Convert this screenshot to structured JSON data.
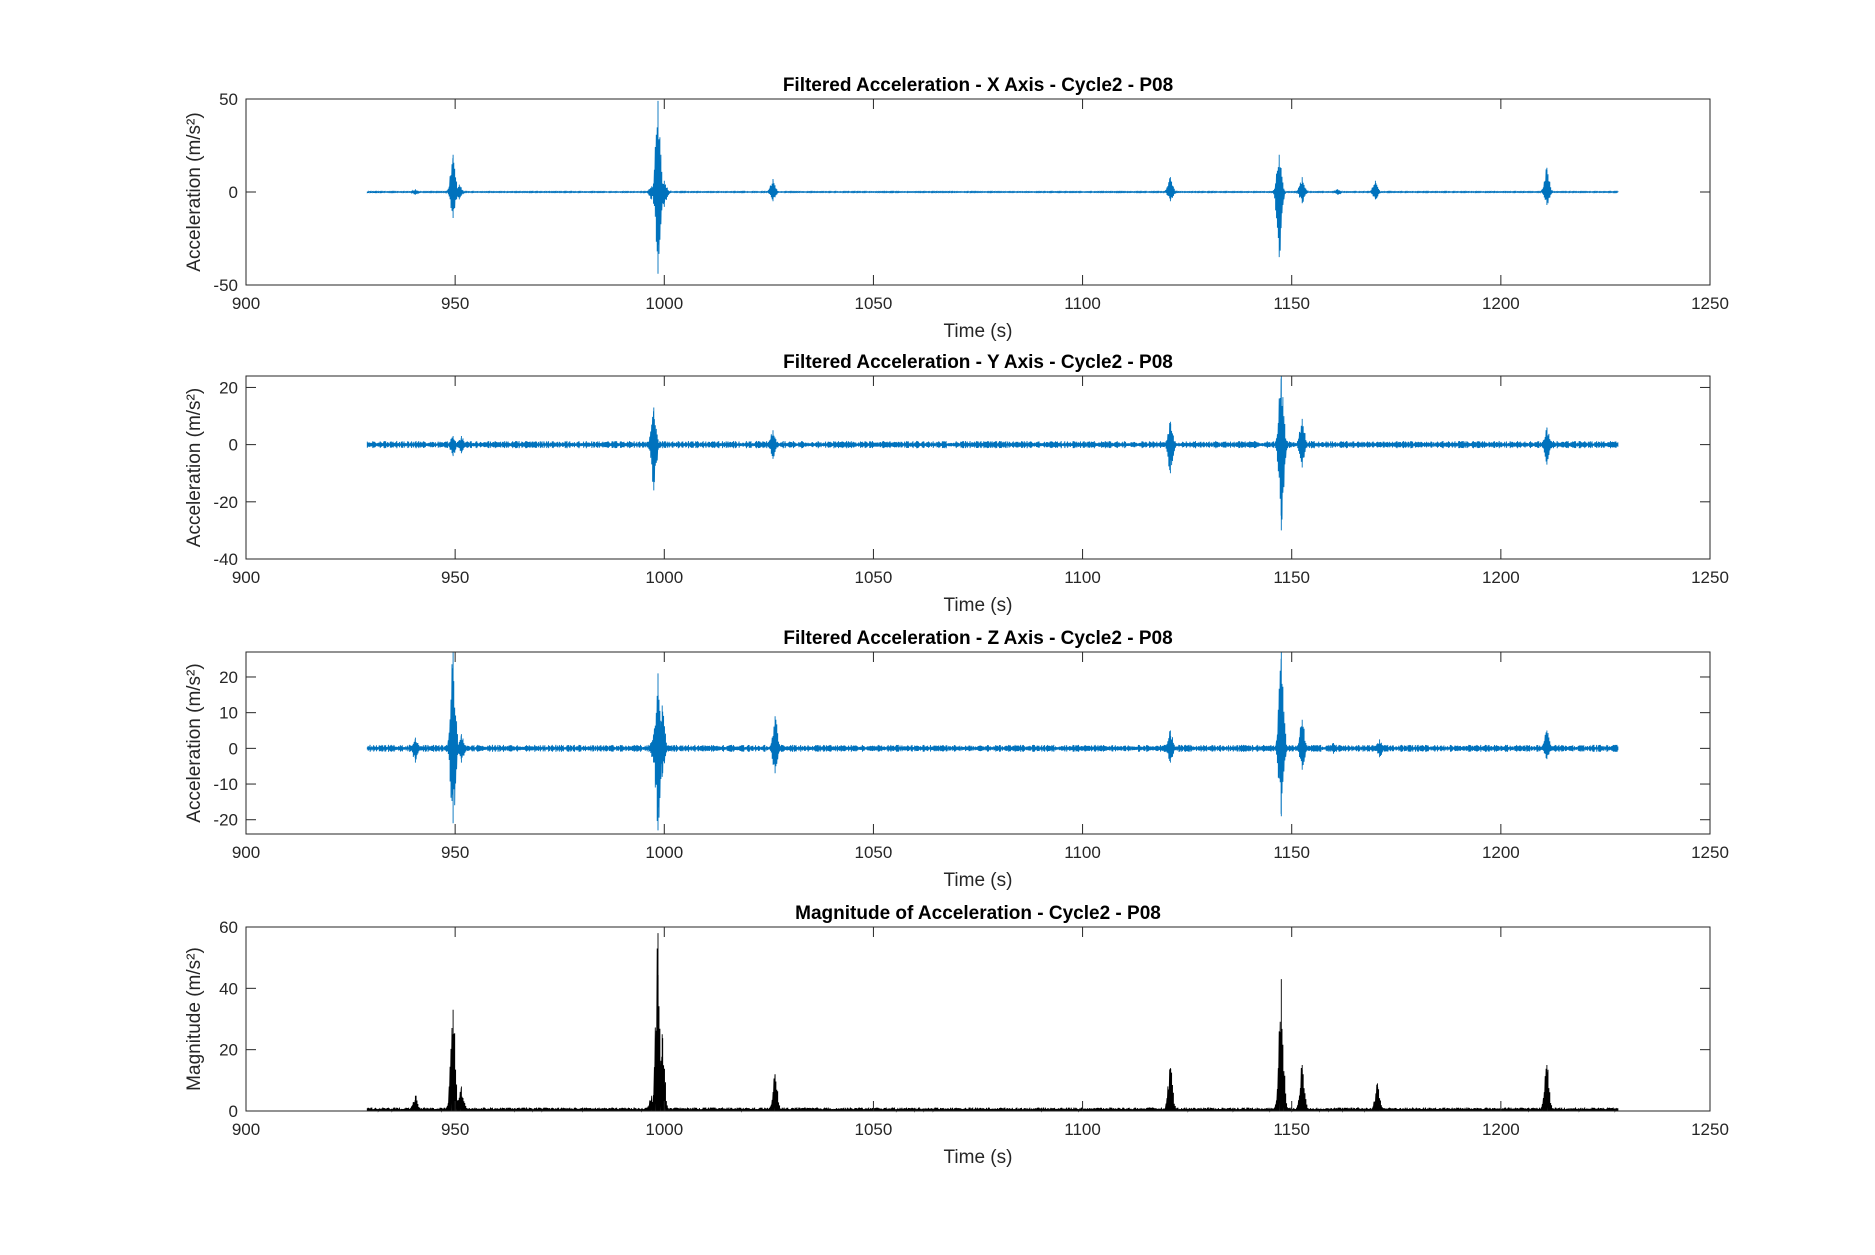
{
  "figure": {
    "colors": {
      "series": "#0072BD",
      "magnitude": "#000000",
      "axes": "#262626",
      "background": "#ffffff"
    }
  },
  "chart_data": [
    {
      "type": "line",
      "title": "Filtered Acceleration - X Axis - Cycle2 - P08",
      "xlabel": "Time (s)",
      "ylabel": "Acceleration (m/s²)",
      "xlim": [
        900,
        1250
      ],
      "ylim": [
        -50,
        50
      ],
      "xticks": [
        900,
        950,
        1000,
        1050,
        1100,
        1150,
        1200,
        1250
      ],
      "yticks": [
        -50,
        0,
        50
      ],
      "grid": false,
      "signal": {
        "x_start": 929,
        "x_end": 1228,
        "baseline": 0,
        "noise": 0.2,
        "bursts": [
          {
            "t": 940.5,
            "pos": 1.5,
            "neg": -1.5
          },
          {
            "t": 949.5,
            "pos": 20,
            "neg": -14
          },
          {
            "t": 951,
            "pos": 4,
            "neg": -4
          },
          {
            "t": 997,
            "pos": 3,
            "neg": -4
          },
          {
            "t": 998.5,
            "pos": 49,
            "neg": -44
          },
          {
            "t": 1000,
            "pos": 6,
            "neg": -8
          },
          {
            "t": 1026,
            "pos": 7,
            "neg": -5
          },
          {
            "t": 1121,
            "pos": 8,
            "neg": -5
          },
          {
            "t": 1147,
            "pos": 20,
            "neg": -35
          },
          {
            "t": 1152.5,
            "pos": 8,
            "neg": -6
          },
          {
            "t": 1161,
            "pos": 1.5,
            "neg": -1.5
          },
          {
            "t": 1170,
            "pos": 6,
            "neg": -4
          },
          {
            "t": 1211,
            "pos": 13,
            "neg": -7
          }
        ]
      }
    },
    {
      "type": "line",
      "title": "Filtered Acceleration - Y Axis - Cycle2 - P08",
      "xlabel": "Time (s)",
      "ylabel": "Acceleration (m/s²)",
      "xlim": [
        900,
        1250
      ],
      "ylim": [
        -40,
        24
      ],
      "xticks": [
        900,
        950,
        1000,
        1050,
        1100,
        1150,
        1200,
        1250
      ],
      "yticks": [
        -40,
        -20,
        0,
        20
      ],
      "grid": false,
      "signal": {
        "x_start": 929,
        "x_end": 1228,
        "baseline": 0,
        "noise": 0.9,
        "bursts": [
          {
            "t": 949.5,
            "pos": 3,
            "neg": -4
          },
          {
            "t": 951.5,
            "pos": 3,
            "neg": -3
          },
          {
            "t": 997.5,
            "pos": 13,
            "neg": -16
          },
          {
            "t": 1026,
            "pos": 5,
            "neg": -5
          },
          {
            "t": 1121,
            "pos": 8,
            "neg": -10
          },
          {
            "t": 1147.5,
            "pos": 24,
            "neg": -30
          },
          {
            "t": 1152.5,
            "pos": 9,
            "neg": -8
          },
          {
            "t": 1211,
            "pos": 6,
            "neg": -7
          }
        ]
      }
    },
    {
      "type": "line",
      "title": "Filtered Acceleration - Z Axis - Cycle2 - P08",
      "xlabel": "Time (s)",
      "ylabel": "Acceleration (m/s²)",
      "xlim": [
        900,
        1250
      ],
      "ylim": [
        -24,
        27
      ],
      "xticks": [
        900,
        950,
        1000,
        1050,
        1100,
        1150,
        1200,
        1250
      ],
      "yticks": [
        -20,
        -10,
        0,
        10,
        20
      ],
      "grid": false,
      "signal": {
        "x_start": 929,
        "x_end": 1228,
        "baseline": 0,
        "noise": 0.7,
        "bursts": [
          {
            "t": 940.5,
            "pos": 3,
            "neg": -4
          },
          {
            "t": 949.5,
            "pos": 27,
            "neg": -21
          },
          {
            "t": 951.5,
            "pos": 4,
            "neg": -4
          },
          {
            "t": 997.5,
            "pos": 4,
            "neg": -4
          },
          {
            "t": 998.5,
            "pos": 21,
            "neg": -23
          },
          {
            "t": 999.5,
            "pos": 12,
            "neg": -8
          },
          {
            "t": 1026.5,
            "pos": 9,
            "neg": -7
          },
          {
            "t": 1121,
            "pos": 5,
            "neg": -4
          },
          {
            "t": 1147.5,
            "pos": 27,
            "neg": -19
          },
          {
            "t": 1152.5,
            "pos": 8,
            "neg": -6
          },
          {
            "t": 1160,
            "pos": 1.5,
            "neg": -1.5
          },
          {
            "t": 1171,
            "pos": 2.5,
            "neg": -2.5
          },
          {
            "t": 1211,
            "pos": 5,
            "neg": -3
          }
        ]
      }
    },
    {
      "type": "line",
      "title": "Magnitude of Acceleration - Cycle2 - P08",
      "xlabel": "Time (s)",
      "ylabel": "Magnitude (m/s²)",
      "xlim": [
        900,
        1250
      ],
      "ylim": [
        0,
        60
      ],
      "xticks": [
        900,
        950,
        1000,
        1050,
        1100,
        1150,
        1200,
        1250
      ],
      "yticks": [
        0,
        20,
        40,
        60
      ],
      "grid": false,
      "signal": {
        "x_start": 929,
        "x_end": 1228,
        "baseline": 0.3,
        "noise": 0.6,
        "bursts": [
          {
            "t": 940.5,
            "pos": 5,
            "neg": 0
          },
          {
            "t": 949.5,
            "pos": 33,
            "neg": 0
          },
          {
            "t": 951.5,
            "pos": 8,
            "neg": 0
          },
          {
            "t": 997,
            "pos": 5,
            "neg": 0
          },
          {
            "t": 998.5,
            "pos": 58,
            "neg": 0
          },
          {
            "t": 999.5,
            "pos": 25,
            "neg": 0
          },
          {
            "t": 1026.5,
            "pos": 12,
            "neg": 0
          },
          {
            "t": 1121,
            "pos": 14,
            "neg": 0
          },
          {
            "t": 1147.5,
            "pos": 43,
            "neg": 0
          },
          {
            "t": 1152.5,
            "pos": 15,
            "neg": 0
          },
          {
            "t": 1170.5,
            "pos": 9,
            "neg": 0
          },
          {
            "t": 1211,
            "pos": 15,
            "neg": 0
          }
        ]
      }
    }
  ]
}
